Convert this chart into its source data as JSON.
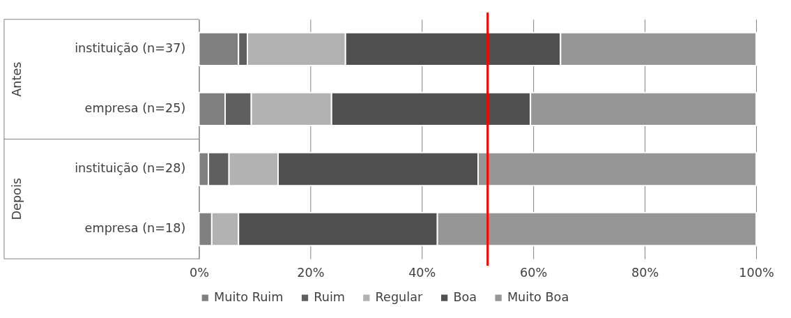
{
  "chart_data": {
    "type": "bar",
    "orientation": "horizontal",
    "stacked": true,
    "categories": [
      "instituição (n=37)",
      "empresa (n=25)",
      "instituição (n=28)",
      "empresa (n=18)"
    ],
    "series": [
      {
        "name": "Muito Ruim",
        "color": "#808080",
        "values": [
          7.1,
          4.7,
          1.7,
          2.3
        ]
      },
      {
        "name": "Ruim",
        "color": "#5f5f5f",
        "values": [
          1.6,
          4.7,
          3.7,
          0
        ]
      },
      {
        "name": "Regular",
        "color": "#b2b2b2",
        "values": [
          17.6,
          14.4,
          8.8,
          4.8
        ]
      },
      {
        "name": "Boa",
        "color": "#505050",
        "values": [
          38.6,
          35.7,
          35.9,
          35.7
        ]
      },
      {
        "name": "Muito Boa",
        "color": "#969696",
        "values": [
          35.1,
          40.5,
          49.9,
          57.2
        ]
      }
    ],
    "xlim": [
      0,
      100
    ],
    "xticks": [
      {
        "value": 0,
        "label": "0%"
      },
      {
        "value": 20,
        "label": "20%"
      },
      {
        "value": 40,
        "label": "40%"
      },
      {
        "value": 60,
        "label": "60%"
      },
      {
        "value": 80,
        "label": "80%"
      },
      {
        "value": 100,
        "label": "100%"
      }
    ],
    "ref_lines": [
      {
        "axis": "x",
        "value": 51.8,
        "color": "#ff0000"
      }
    ],
    "annotations": [
      "Antes",
      "Depois"
    ],
    "grid": "x",
    "legend": "bottom"
  }
}
